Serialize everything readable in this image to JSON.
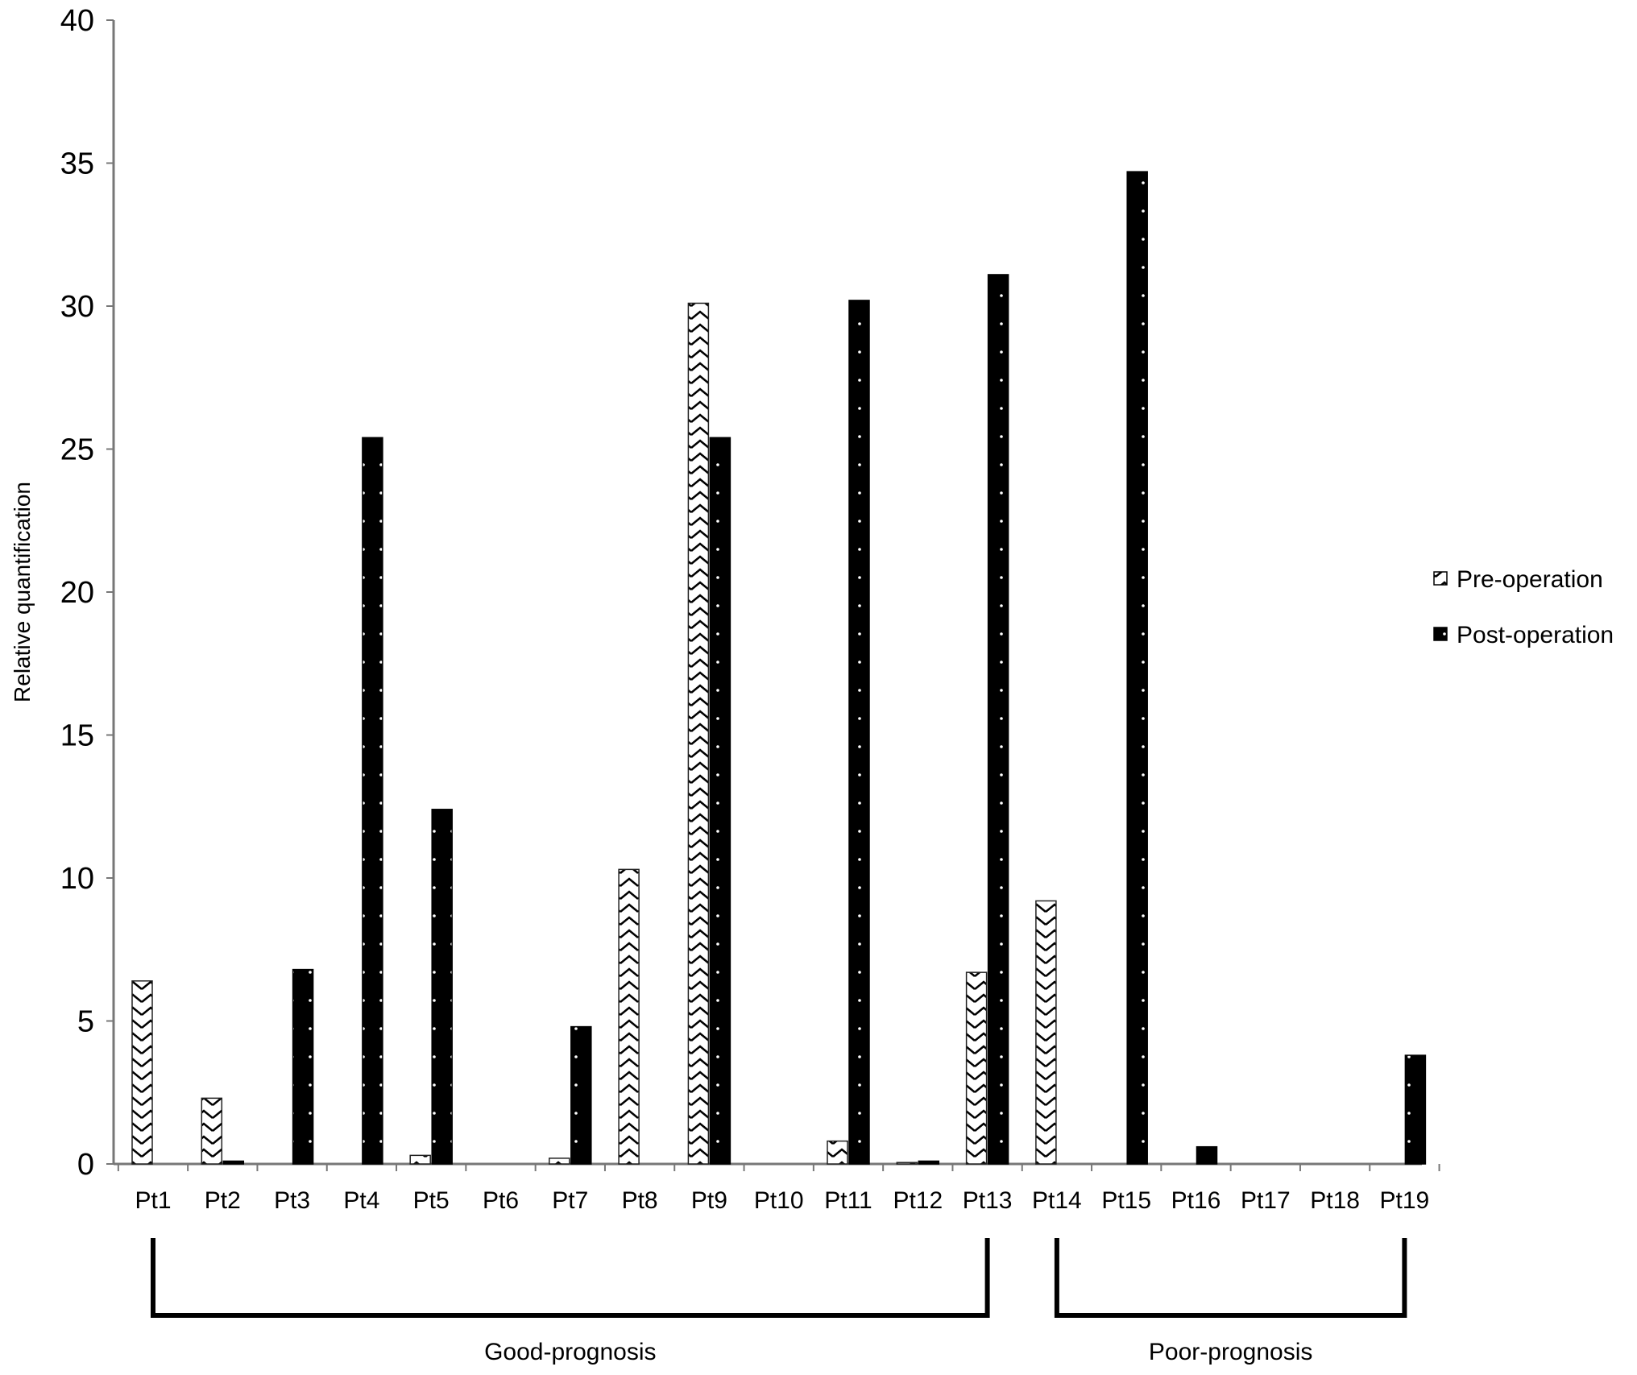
{
  "chart_data": {
    "type": "bar",
    "title": "",
    "xlabel": "",
    "ylabel": "Relative quantification",
    "ylim": [
      0,
      40
    ],
    "yticks": [
      0,
      5,
      10,
      15,
      20,
      25,
      30,
      35,
      40
    ],
    "grid": false,
    "legend_position": "right",
    "categories": [
      "Pt1",
      "Pt2",
      "Pt3",
      "Pt4",
      "Pt5",
      "Pt6",
      "Pt7",
      "Pt8",
      "Pt9",
      "Pt10",
      "Pt11",
      "Pt12",
      "Pt13",
      "Pt14",
      "Pt15",
      "Pt16",
      "Pt17",
      "Pt18",
      "Pt19"
    ],
    "series": [
      {
        "name": "Pre-operation",
        "pattern": "zigzag-hatch",
        "color": "#ffffff",
        "values": [
          6.4,
          2.3,
          0.0,
          0.0,
          0.3,
          0.0,
          0.2,
          10.3,
          30.1,
          0.0,
          0.8,
          0.05,
          6.7,
          9.2,
          0.0,
          0.0,
          0.0,
          0.0,
          0.0
        ]
      },
      {
        "name": "Post-operation",
        "pattern": "dotted-dark",
        "color": "#000000",
        "values": [
          0.0,
          0.1,
          6.8,
          25.4,
          12.4,
          0.0,
          4.8,
          0.0,
          25.4,
          0.0,
          30.2,
          0.1,
          31.1,
          0.0,
          34.7,
          0.6,
          0.0,
          0.0,
          3.8
        ]
      }
    ],
    "groups": [
      {
        "label": "Good-prognosis",
        "from": "Pt1",
        "to": "Pt13"
      },
      {
        "label": "Poor-prognosis",
        "from": "Pt14",
        "to": "Pt19"
      }
    ]
  }
}
